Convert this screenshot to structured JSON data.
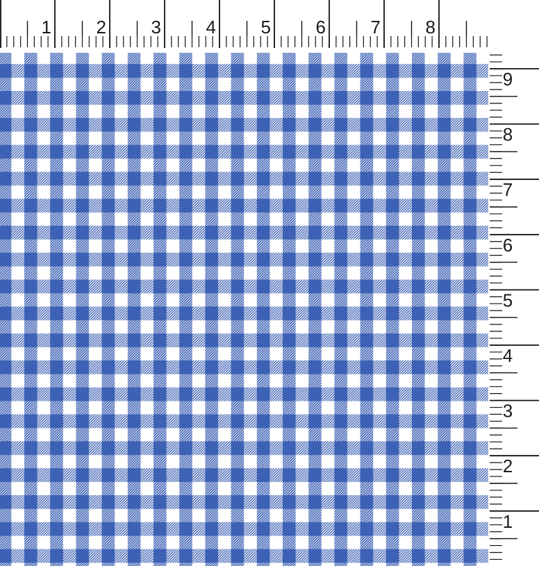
{
  "view": {
    "description": "Blue gingham check fabric swatch displayed with measurement rulers along the top and right edges"
  },
  "rulers": {
    "top": {
      "labels": [
        "1",
        "2",
        "3",
        "4",
        "5",
        "6",
        "7",
        "8"
      ]
    },
    "right": {
      "labels": [
        "9",
        "8",
        "7",
        "6",
        "5",
        "4",
        "3",
        "2",
        "1"
      ]
    },
    "tick_color": "#111111",
    "number_color": "#1b1b1b"
  },
  "fabric": {
    "pattern_name": "gingham-check",
    "check_blue": "#3d61b4",
    "background_white": "#ffffff"
  }
}
